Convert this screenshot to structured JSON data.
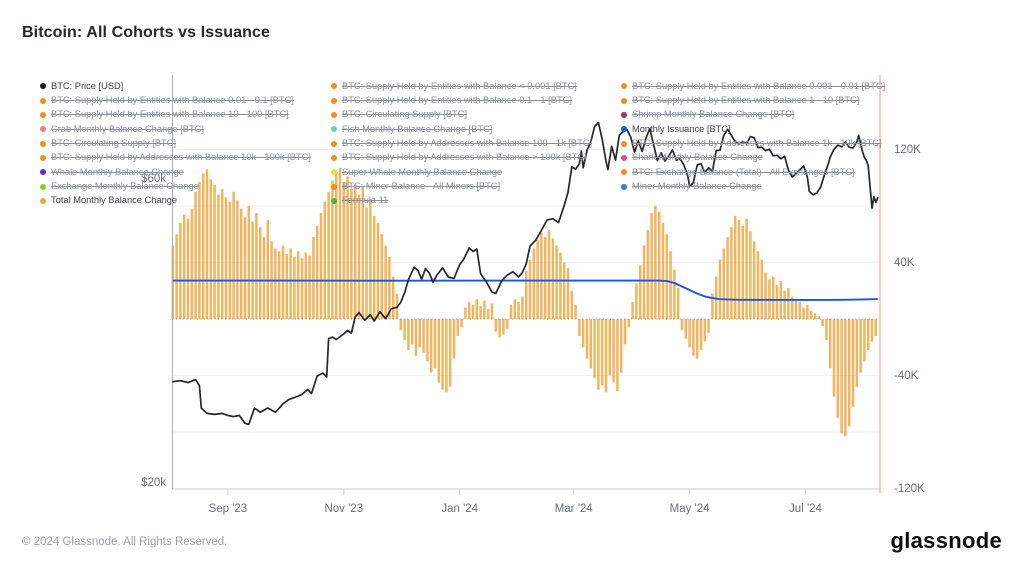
{
  "header": {
    "title": "Bitcoin: All Cohorts vs Issuance"
  },
  "footer": {
    "copyright": "© 2024 Glassnode. All Rights Reserved.",
    "brand": "glassnode"
  },
  "legend": {
    "columns": [
      {
        "items": [
          {
            "label": "BTC: Price [USD]",
            "color": "#17181c",
            "active": true
          },
          {
            "label": "BTC: Supply Held by Entities with Balance 0.01 - 0.1 [BTC]",
            "color": "#f28f1c",
            "active": false
          },
          {
            "label": "BTC: Supply Held by Entities with Balance 10 - 100 [BTC]",
            "color": "#f28f1c",
            "active": false
          },
          {
            "label": "Crab Monthly Balance Change [BTC]",
            "color": "#ef8277",
            "active": false
          },
          {
            "label": "BTC: Circulating Supply [BTC]",
            "color": "#f28f1c",
            "active": false
          },
          {
            "label": "BTC: Supply Held by Addresses with Balance 10k - 100k [BTC]",
            "color": "#f28f1c",
            "active": false
          },
          {
            "label": "Whale Monthly Balance Change",
            "color": "#5b2bd9",
            "active": false
          },
          {
            "label": "Exchange Monthly Balance Change",
            "color": "#7ed321",
            "active": false
          },
          {
            "label": "Total Monthly Balance Change",
            "color": "#f2a33c",
            "active": true
          }
        ]
      },
      {
        "items": [
          {
            "label": "BTC: Supply Held by Entities with Balance < 0.001 [BTC]",
            "color": "#f28f1c",
            "active": false
          },
          {
            "label": "BTC: Supply Held by Entities with Balance 0.1 - 1 [BTC]",
            "color": "#f28f1c",
            "active": false
          },
          {
            "label": "BTC: Circulating Supply [BTC]",
            "color": "#f28f1c",
            "active": false
          },
          {
            "label": "Fish Monthly Balance Change [BTC]",
            "color": "#66cfc4",
            "active": false
          },
          {
            "label": "BTC: Supply Held by Addresses with Balance 100 - 1k [BTC]",
            "color": "#f28f1c",
            "active": false
          },
          {
            "label": "BTC: Supply Held by Addresses with Balance > 100k [BTC]",
            "color": "#f28f1c",
            "active": false
          },
          {
            "label": "Super Whale Monthly Balance Change",
            "color": "#e3e04e",
            "active": false
          },
          {
            "label": "BTC: Miner Balance - All Miners [BTC]",
            "color": "#f28f1c",
            "active": false
          },
          {
            "label": "Formula 11",
            "color": "#4fb52e",
            "active": false
          }
        ]
      },
      {
        "items": [
          {
            "label": "BTC: Supply Held by Entities with Balance 0.001 - 0.01 [BTC]",
            "color": "#f28f1c",
            "active": false
          },
          {
            "label": "BTC: Supply Held by Entities with Balance 1 - 10 [BTC]",
            "color": "#f28f1c",
            "active": false
          },
          {
            "label": "Shrimp Monthly Balance Change [BTC]",
            "color": "#9c3566",
            "active": false
          },
          {
            "label": "Monthly Issuance [BTC]",
            "color": "#1a56f0",
            "active": true
          },
          {
            "label": "BTC: Supply Held by Addresses with Balance 1k - 10k [BTC]",
            "color": "#f28f1c",
            "active": false
          },
          {
            "label": "Shark Monthly Balance Change",
            "color": "#e5489b",
            "active": false
          },
          {
            "label": "BTC: Exchange Balance (Total) - All Exchanges [BTC]",
            "color": "#f28f1c",
            "active": false
          },
          {
            "label": "Miner Monthly Balance Change",
            "color": "#3e76d6",
            "active": false
          }
        ]
      }
    ]
  },
  "chart_data": {
    "type": "mixed",
    "title": "Bitcoin: All Cohorts vs Issuance",
    "x_axis": {
      "unit": "days since 2023-08-01",
      "tick_labels": [
        "Sep '23",
        "Nov '23",
        "Jan '24",
        "Mar '24",
        "May '24",
        "Jul '24"
      ],
      "tick_days": [
        31,
        92,
        153,
        213,
        274,
        335
      ],
      "day_range": [
        2,
        373
      ]
    },
    "left_axis": {
      "scale": "log",
      "unit": "USD",
      "labels": [
        "$60k",
        "$20k"
      ],
      "label_values_k": [
        60,
        20
      ]
    },
    "right_axis": {
      "scale": "linear",
      "unit": "K BTC",
      "labels": [
        "120K",
        "40K",
        "-40K",
        "-120K"
      ],
      "label_values": [
        120,
        40,
        -40,
        -120
      ],
      "gridline_values": [
        120,
        80,
        40,
        0,
        -40,
        -80,
        -120
      ],
      "ylim": [
        -125,
        125
      ]
    },
    "series": [
      {
        "name": "Total Monthly Balance Change",
        "type": "bar",
        "axis": "right",
        "unit": "K BTC",
        "color": "#efa843",
        "day_start": 2,
        "day_step": 2,
        "values": [
          52,
          60,
          68,
          74,
          71,
          78,
          90,
          97,
          103,
          106,
          99,
          95,
          88,
          92,
          86,
          83,
          90,
          84,
          78,
          72,
          80,
          69,
          75,
          65,
          58,
          70,
          55,
          50,
          48,
          52,
          46,
          50,
          44,
          48,
          43,
          47,
          45,
          58,
          66,
          75,
          83,
          90,
          98,
          104,
          107,
          97,
          101,
          92,
          95,
          88,
          94,
          79,
          85,
          73,
          68,
          60,
          52,
          44,
          30,
          18,
          -8,
          -15,
          -22,
          -18,
          -26,
          -20,
          -24,
          -30,
          -38,
          -35,
          -45,
          -50,
          -52,
          -48,
          -28,
          -12,
          -6,
          8,
          12,
          10,
          14,
          9,
          13,
          7,
          11,
          -9,
          -13,
          -11,
          -7,
          10,
          14,
          12,
          16,
          34,
          42,
          50,
          56,
          61,
          58,
          63,
          57,
          52,
          47,
          40,
          36,
          20,
          10,
          -12,
          -20,
          -28,
          -35,
          -42,
          -50,
          -47,
          -52,
          -40,
          -45,
          -51,
          -38,
          -18,
          -6,
          12,
          25,
          38,
          52,
          63,
          75,
          80,
          76,
          68,
          60,
          48,
          35,
          22,
          -8,
          -14,
          -20,
          -26,
          -28,
          -22,
          -16,
          -10,
          18,
          30,
          42,
          50,
          58,
          65,
          73,
          70,
          66,
          71,
          62,
          55,
          48,
          42,
          33,
          28,
          30,
          24,
          27,
          20,
          22,
          16,
          13,
          12,
          8,
          10,
          6,
          4,
          2,
          -5,
          -15,
          -35,
          -55,
          -70,
          -81,
          -83,
          -76,
          -62,
          -48,
          -38,
          -30,
          -22,
          -16,
          -12
        ]
      },
      {
        "name": "BTC: Price [USD]",
        "type": "line",
        "axis": "left",
        "unit": "thousand USD",
        "color": "#26272b",
        "points": [
          [
            2,
            29.2
          ],
          [
            6,
            29.3
          ],
          [
            10,
            29.1
          ],
          [
            14,
            29.4
          ],
          [
            16,
            28.8
          ],
          [
            17,
            26.6
          ],
          [
            20,
            26.1
          ],
          [
            24,
            26.0
          ],
          [
            28,
            26.1
          ],
          [
            31,
            25.9
          ],
          [
            34,
            25.8
          ],
          [
            37,
            25.9
          ],
          [
            40,
            25.2
          ],
          [
            42,
            25.1
          ],
          [
            45,
            26.6
          ],
          [
            48,
            26.2
          ],
          [
            52,
            26.6
          ],
          [
            56,
            26.2
          ],
          [
            60,
            27.0
          ],
          [
            63,
            27.4
          ],
          [
            66,
            27.6
          ],
          [
            70,
            27.9
          ],
          [
            73,
            28.4
          ],
          [
            75,
            28.0
          ],
          [
            78,
            29.8
          ],
          [
            81,
            30.1
          ],
          [
            83,
            29.7
          ],
          [
            84,
            34.0
          ],
          [
            86,
            34.2
          ],
          [
            88,
            33.9
          ],
          [
            92,
            34.6
          ],
          [
            94,
            35.0
          ],
          [
            96,
            34.7
          ],
          [
            98,
            36.7
          ],
          [
            100,
            37.3
          ],
          [
            103,
            36.3
          ],
          [
            106,
            37.0
          ],
          [
            108,
            36.2
          ],
          [
            111,
            37.4
          ],
          [
            114,
            36.5
          ],
          [
            117,
            37.8
          ],
          [
            120,
            38.0
          ],
          [
            122,
            38.7
          ],
          [
            124,
            40.0
          ],
          [
            126,
            41.9
          ],
          [
            129,
            43.8
          ],
          [
            131,
            43.3
          ],
          [
            133,
            42.0
          ],
          [
            135,
            43.6
          ],
          [
            137,
            42.9
          ],
          [
            139,
            41.5
          ],
          [
            141,
            42.6
          ],
          [
            144,
            43.7
          ],
          [
            147,
            42.3
          ],
          [
            150,
            42.1
          ],
          [
            153,
            44.2
          ],
          [
            155,
            45.0
          ],
          [
            158,
            46.9
          ],
          [
            160,
            46.3
          ],
          [
            162,
            46.7
          ],
          [
            164,
            42.8
          ],
          [
            167,
            41.6
          ],
          [
            170,
            40.1
          ],
          [
            172,
            39.9
          ],
          [
            175,
            41.7
          ],
          [
            178,
            42.6
          ],
          [
            181,
            43.1
          ],
          [
            184,
            42.3
          ],
          [
            186,
            43.0
          ],
          [
            188,
            44.3
          ],
          [
            190,
            47.2
          ],
          [
            193,
            48.2
          ],
          [
            196,
            49.9
          ],
          [
            199,
            51.8
          ],
          [
            202,
            52.0
          ],
          [
            205,
            51.3
          ],
          [
            208,
            54.5
          ],
          [
            210,
            57.1
          ],
          [
            212,
            62.5
          ],
          [
            214,
            62.0
          ],
          [
            216,
            63.2
          ],
          [
            217,
            66.1
          ],
          [
            218,
            62.3
          ],
          [
            220,
            66.3
          ],
          [
            222,
            68.3
          ],
          [
            224,
            72.1
          ],
          [
            226,
            73.1
          ],
          [
            228,
            68.9
          ],
          [
            230,
            63.8
          ],
          [
            231,
            61.9
          ],
          [
            233,
            67.2
          ],
          [
            235,
            64.0
          ],
          [
            237,
            69.9
          ],
          [
            239,
            70.8
          ],
          [
            241,
            71.3
          ],
          [
            243,
            69.5
          ],
          [
            245,
            65.8
          ],
          [
            247,
            68.5
          ],
          [
            249,
            66.0
          ],
          [
            251,
            69.1
          ],
          [
            253,
            71.6
          ],
          [
            255,
            67.8
          ],
          [
            257,
            63.9
          ],
          [
            259,
            65.7
          ],
          [
            261,
            63.8
          ],
          [
            263,
            64.9
          ],
          [
            265,
            66.4
          ],
          [
            267,
            64.0
          ],
          [
            269,
            64.3
          ],
          [
            271,
            62.9
          ],
          [
            273,
            60.6
          ],
          [
            274,
            58.3
          ],
          [
            276,
            59.1
          ],
          [
            278,
            62.9
          ],
          [
            280,
            63.2
          ],
          [
            282,
            61.2
          ],
          [
            284,
            62.3
          ],
          [
            286,
            61.5
          ],
          [
            288,
            66.2
          ],
          [
            290,
            66.3
          ],
          [
            292,
            69.9
          ],
          [
            294,
            71.4
          ],
          [
            296,
            69.9
          ],
          [
            298,
            68.3
          ],
          [
            300,
            67.8
          ],
          [
            302,
            68.4
          ],
          [
            304,
            67.8
          ],
          [
            306,
            69.6
          ],
          [
            308,
            69.3
          ],
          [
            310,
            66.9
          ],
          [
            312,
            67.0
          ],
          [
            314,
            66.2
          ],
          [
            316,
            66.5
          ],
          [
            318,
            65.0
          ],
          [
            320,
            65.1
          ],
          [
            322,
            64.3
          ],
          [
            324,
            64.9
          ],
          [
            326,
            61.8
          ],
          [
            328,
            60.3
          ],
          [
            330,
            61.0
          ],
          [
            332,
            61.8
          ],
          [
            334,
            62.7
          ],
          [
            336,
            60.2
          ],
          [
            337,
            57.3
          ],
          [
            339,
            56.6
          ],
          [
            341,
            57.0
          ],
          [
            343,
            58.2
          ],
          [
            345,
            60.8
          ],
          [
            347,
            63.2
          ],
          [
            348,
            64.7
          ],
          [
            350,
            66.5
          ],
          [
            352,
            67.5
          ],
          [
            354,
            67.1
          ],
          [
            356,
            68.3
          ],
          [
            358,
            67.0
          ],
          [
            360,
            66.8
          ],
          [
            362,
            68.2
          ],
          [
            363,
            69.9
          ],
          [
            365,
            66.0
          ],
          [
            366,
            64.6
          ],
          [
            367,
            64.0
          ],
          [
            368,
            62.7
          ],
          [
            369,
            58.2
          ],
          [
            370,
            54.0
          ],
          [
            371,
            56.2
          ],
          [
            372,
            55.1
          ],
          [
            373,
            56.0
          ]
        ]
      },
      {
        "name": "Monthly Issuance [BTC]",
        "type": "line",
        "axis": "right",
        "unit": "K BTC",
        "color": "#1d53e0",
        "points": [
          [
            2,
            27.2
          ],
          [
            60,
            27.2
          ],
          [
            120,
            27.1
          ],
          [
            180,
            27.2
          ],
          [
            240,
            27.2
          ],
          [
            258,
            27.2
          ],
          [
            262,
            26.8
          ],
          [
            266,
            25.5
          ],
          [
            270,
            23.0
          ],
          [
            274,
            20.5
          ],
          [
            278,
            18.0
          ],
          [
            282,
            16.0
          ],
          [
            286,
            14.8
          ],
          [
            290,
            14.0
          ],
          [
            300,
            13.6
          ],
          [
            320,
            13.5
          ],
          [
            340,
            13.5
          ],
          [
            355,
            13.6
          ],
          [
            365,
            13.9
          ],
          [
            373,
            14.1
          ]
        ]
      }
    ]
  }
}
